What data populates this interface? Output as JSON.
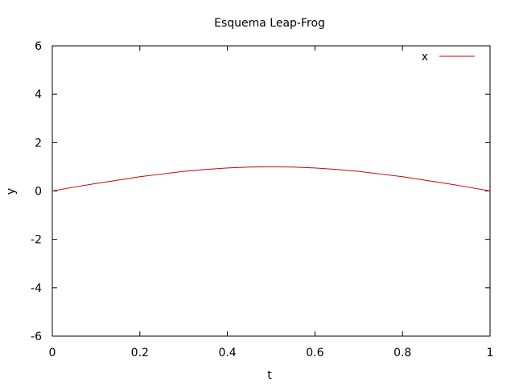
{
  "chart_data": {
    "type": "line",
    "title": "Esquema Leap-Frog",
    "xlabel": "t",
    "ylabel": "y",
    "xlim": [
      0,
      1
    ],
    "ylim": [
      -6,
      6
    ],
    "xticks": [
      0,
      0.2,
      0.4,
      0.6,
      0.8,
      1
    ],
    "xtick_labels": [
      "0",
      "0.2",
      "0.4",
      "0.6",
      "0.8",
      "1"
    ],
    "yticks": [
      -6,
      -4,
      -2,
      0,
      2,
      4,
      6
    ],
    "ytick_labels": [
      "-6",
      "-4",
      "-2",
      "0",
      "2",
      "4",
      "6"
    ],
    "grid": false,
    "legend_position": "top-right",
    "series": [
      {
        "name": "x",
        "color": "#cc0000",
        "x": [
          0,
          0.05,
          0.1,
          0.15,
          0.2,
          0.25,
          0.3,
          0.35,
          0.4,
          0.45,
          0.5,
          0.55,
          0.6,
          0.65,
          0.7,
          0.75,
          0.8,
          0.85,
          0.9,
          0.95,
          1
        ],
        "y": [
          0,
          0.16,
          0.31,
          0.45,
          0.59,
          0.7,
          0.81,
          0.89,
          0.95,
          0.99,
          1.0,
          0.99,
          0.95,
          0.89,
          0.81,
          0.7,
          0.59,
          0.45,
          0.31,
          0.16,
          0
        ]
      }
    ]
  }
}
